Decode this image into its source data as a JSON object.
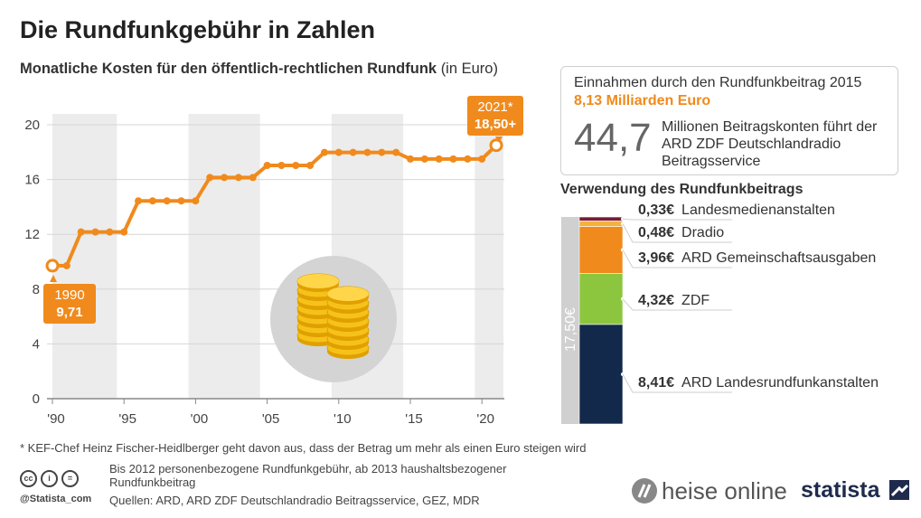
{
  "title": "Die Rundfunkgebühr in Zahlen",
  "subtitle_bold": "Monatliche Kosten für den öffentlich-rechtlichen Rundfunk",
  "subtitle_unit": "(in Euro)",
  "chart_data": {
    "type": "line",
    "title": "Monatliche Kosten für den öffentlich-rechtlichen Rundfunk (in Euro)",
    "x": [
      1990,
      1991,
      1992,
      1993,
      1994,
      1995,
      1996,
      1997,
      1998,
      1999,
      2000,
      2001,
      2002,
      2003,
      2004,
      2005,
      2006,
      2007,
      2008,
      2009,
      2010,
      2011,
      2012,
      2013,
      2014,
      2015,
      2016,
      2017,
      2018,
      2019,
      2020,
      2021
    ],
    "values": [
      9.71,
      9.71,
      12.17,
      12.17,
      12.17,
      12.17,
      14.44,
      14.44,
      14.44,
      14.44,
      14.44,
      16.15,
      16.15,
      16.15,
      16.15,
      17.03,
      17.03,
      17.03,
      17.03,
      17.98,
      17.98,
      17.98,
      17.98,
      17.98,
      17.98,
      17.5,
      17.5,
      17.5,
      17.5,
      17.5,
      17.5,
      18.5
    ],
    "xlabel": "",
    "ylabel": "",
    "ylim": [
      0,
      20
    ],
    "yticks": [
      0,
      4,
      8,
      12,
      16,
      20
    ],
    "xtick_labels": [
      "'90",
      "'95",
      "'00",
      "'05",
      "'10",
      "'15",
      "'20"
    ],
    "xtick_values": [
      1990,
      1995,
      2000,
      2005,
      2010,
      2015,
      2020
    ],
    "shaded_periods": [
      [
        1990,
        1994.5
      ],
      [
        1999.5,
        2004.5
      ],
      [
        2009.5,
        2014.5
      ],
      [
        2019.5,
        2021.5
      ]
    ],
    "color": "#f08a1c"
  },
  "callouts": {
    "start": {
      "year": "1990",
      "value": "9,71"
    },
    "end": {
      "year": "2021*",
      "value": "18,50+"
    }
  },
  "info": {
    "heading": "Einnahmen durch den Rundfunkbeitrag 2015",
    "value": "8,13 Milliarden Euro",
    "big_number": "44,7",
    "big_desc": "Millionen Beitragskonten führt der ARD ZDF Deutschlandradio Beitragsservice"
  },
  "usage": {
    "title": "Verwendung des Rundfunkbeitrags",
    "total_label": "17,50€",
    "segments": [
      {
        "amount": "0,33€",
        "value": 0.33,
        "label": "Landesmedienanstalten",
        "color": "#7a1b3b"
      },
      {
        "amount": "0,48€",
        "value": 0.48,
        "label": "Dradio",
        "color": "#f2b23c"
      },
      {
        "amount": "3,96€",
        "value": 3.96,
        "label": "ARD Gemeinschaftsausgaben",
        "color": "#f08a1c"
      },
      {
        "amount": "4,32€",
        "value": 4.32,
        "label": "ZDF",
        "color": "#8cc63f"
      },
      {
        "amount": "8,41€",
        "value": 8.41,
        "label": "ARD Landesrundfunkanstalten",
        "color": "#13294b"
      }
    ]
  },
  "footer": {
    "footnote": "* KEF-Chef Heinz Fischer-Heidlberger geht davon aus, dass der Betrag um mehr als einen  Euro steigen wird",
    "note": "Bis 2012 personenbezogene Rundfunkgebühr, ab 2013 haushaltsbezogener Rundfunkbeitrag",
    "sources": "Quellen: ARD, ARD ZDF Deutschlandradio Beitragsservice, GEZ, MDR",
    "handle": "@Statista_com",
    "license_icons": [
      "cc-icon",
      "by-icon",
      "nd-icon"
    ],
    "brand_heise": "heise online",
    "brand_statista": "statista"
  }
}
